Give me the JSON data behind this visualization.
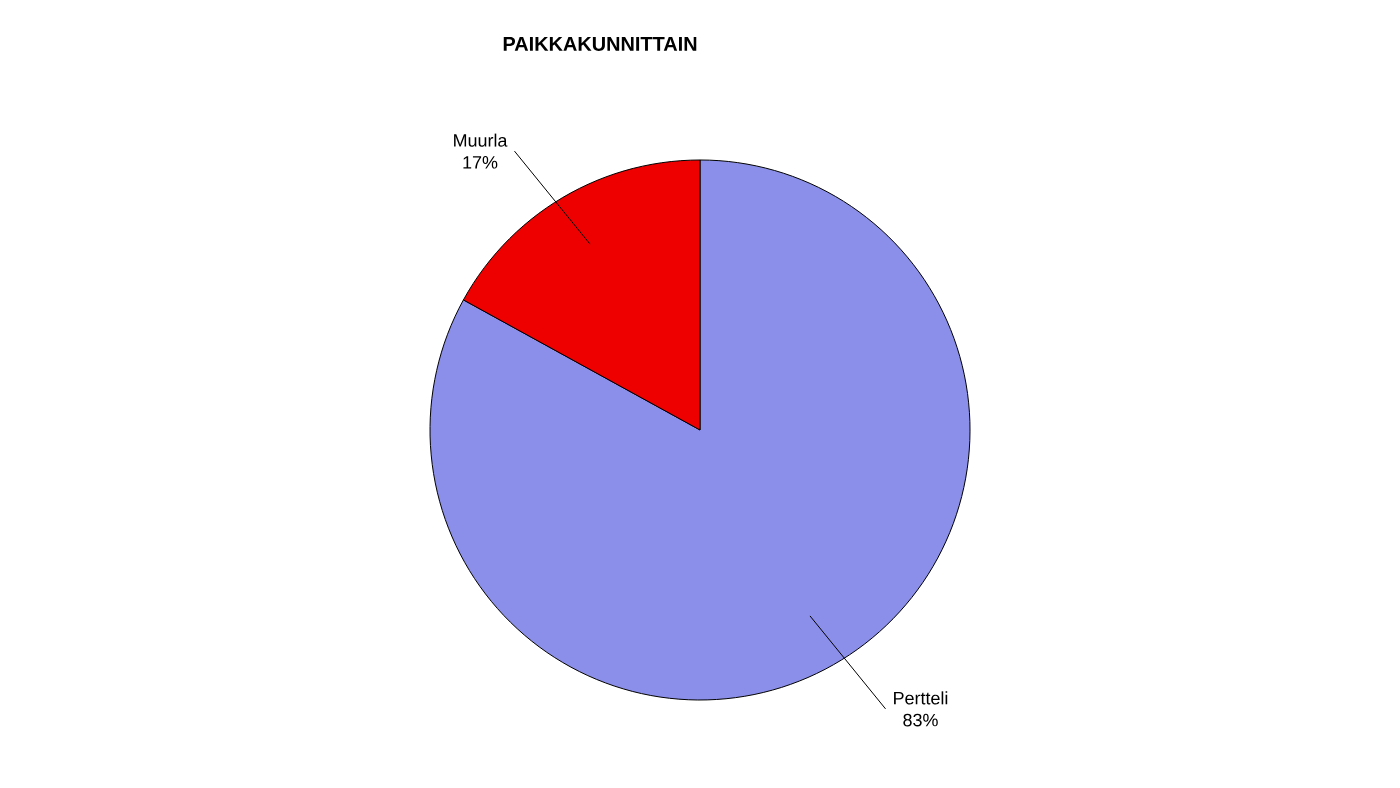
{
  "chart_data": {
    "type": "pie",
    "title": "PAIKKAKUNNITTAIN",
    "categories": [
      "Pertteli",
      "Muurla"
    ],
    "values": [
      83,
      17
    ],
    "colors": [
      "#8b8fea",
      "#ee0000"
    ],
    "data_labels": true,
    "value_labels": [
      "83%",
      "17%"
    ]
  }
}
